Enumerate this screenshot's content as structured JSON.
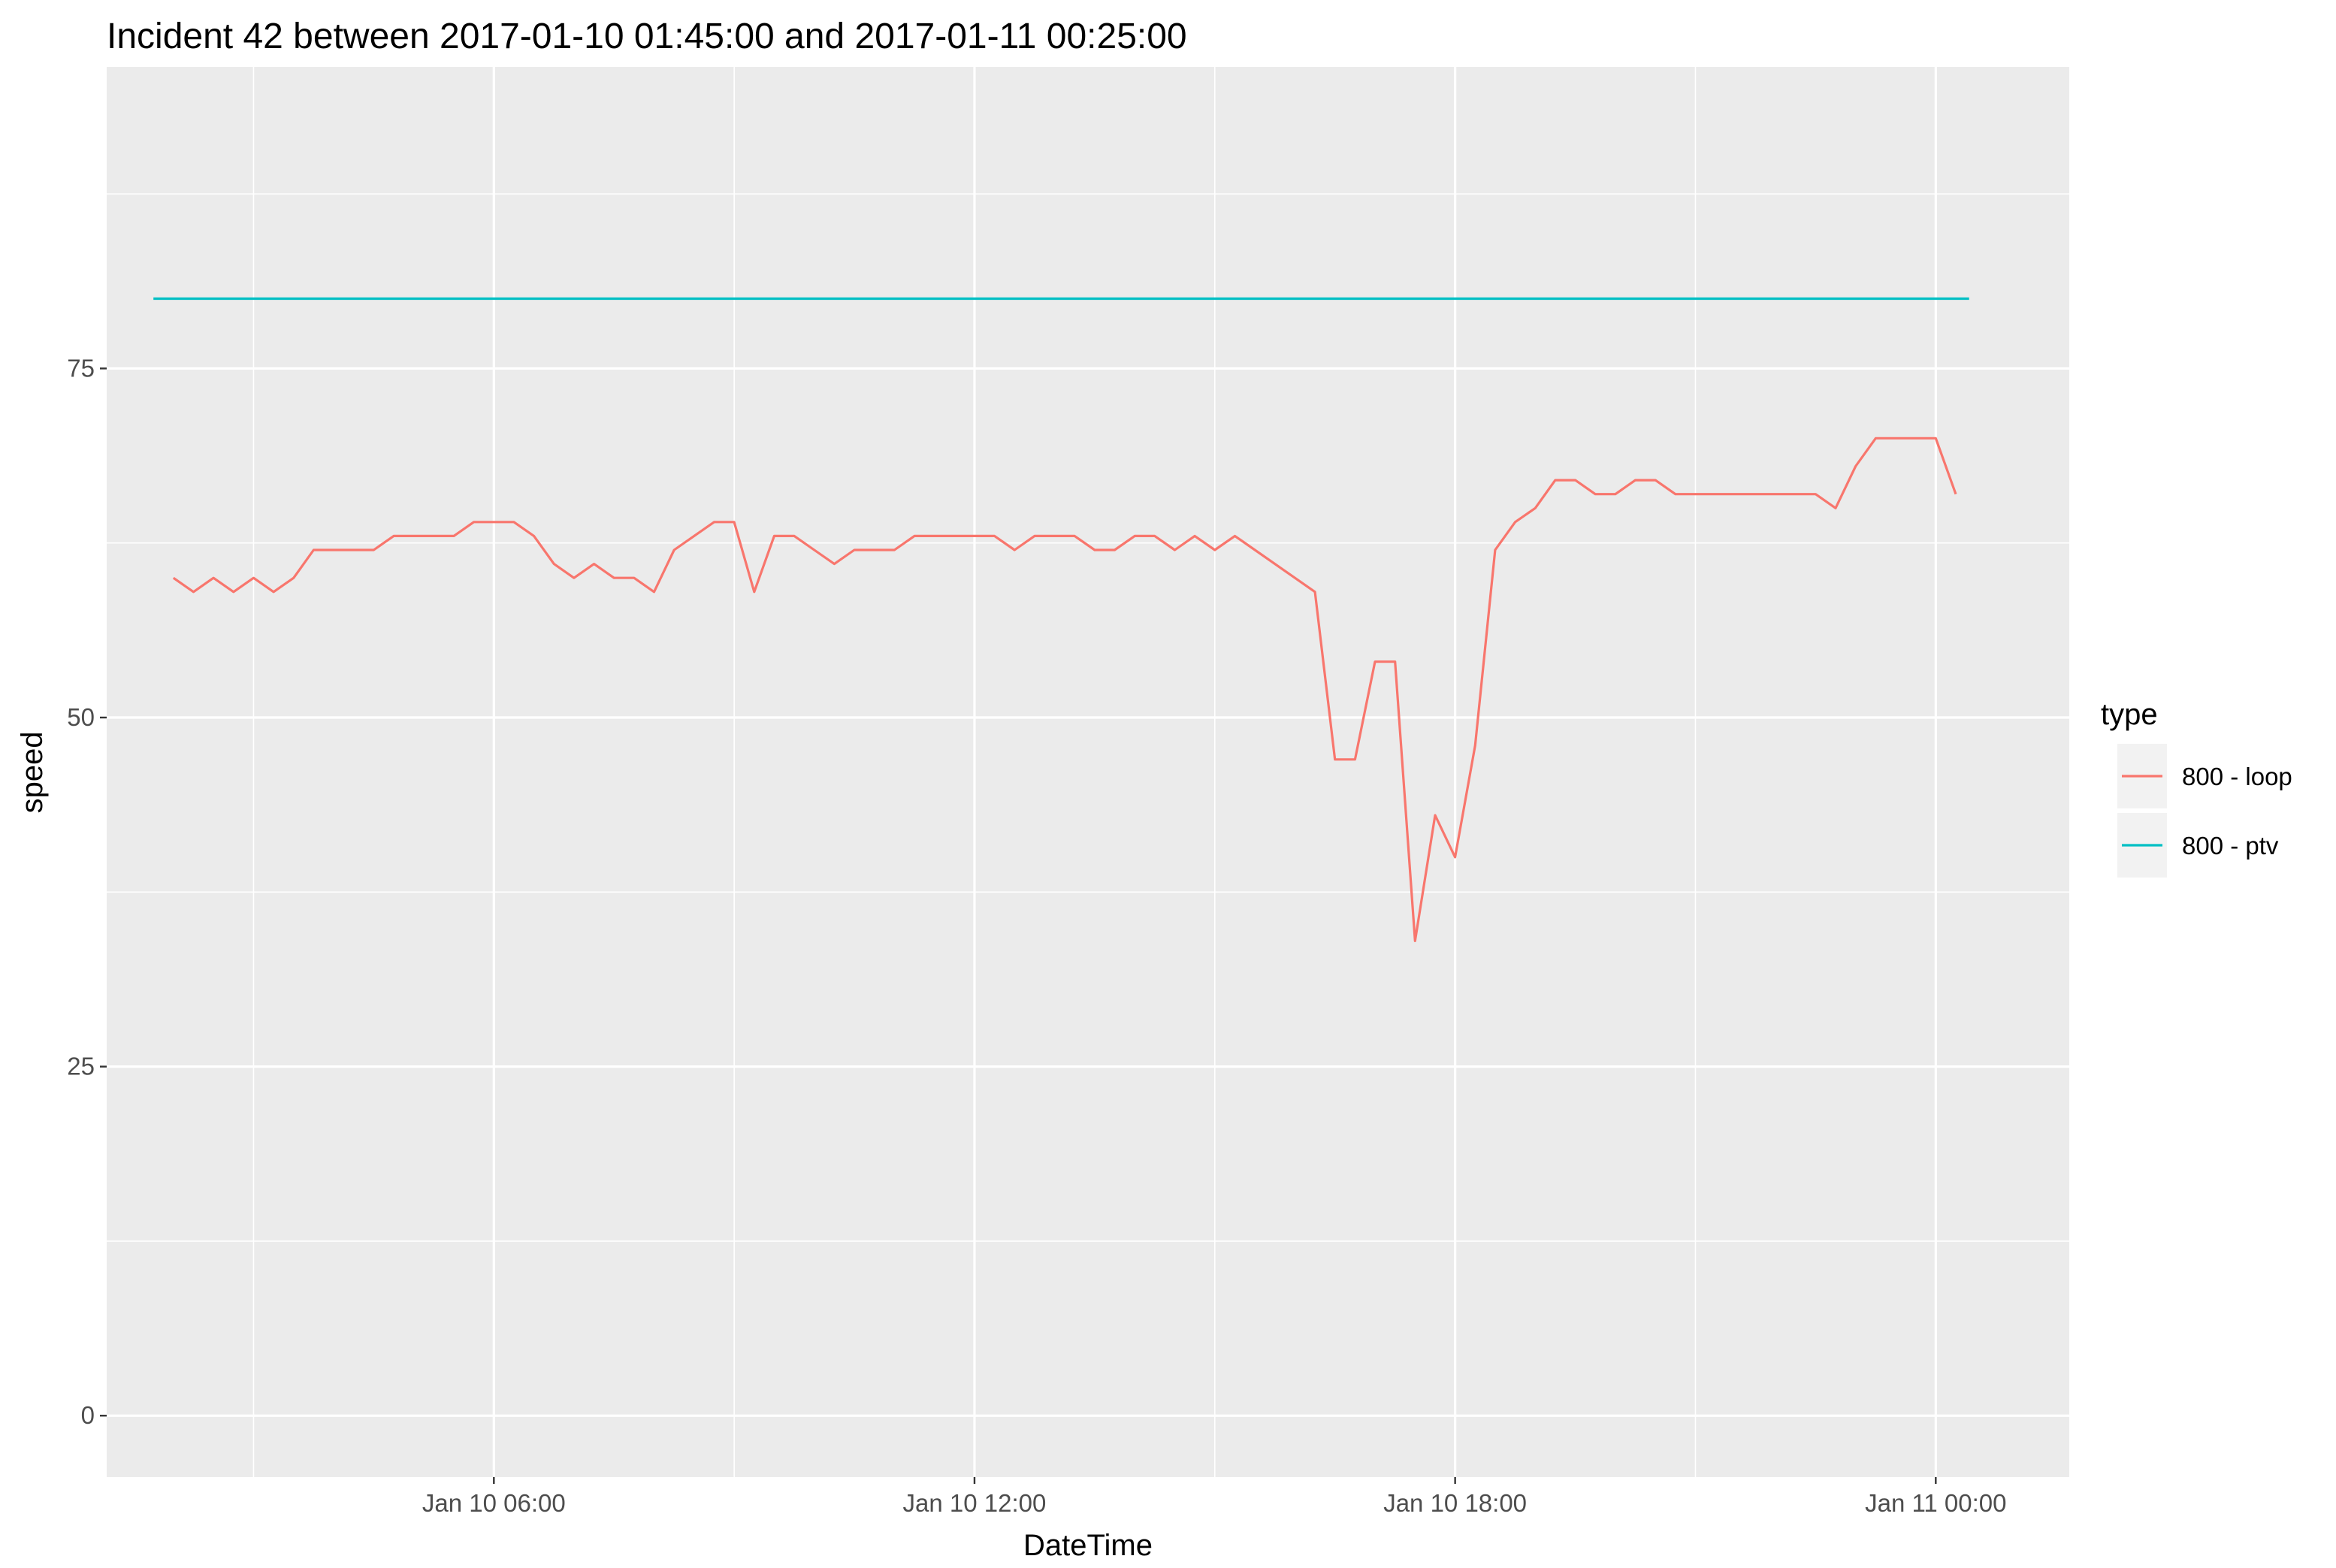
{
  "chart_data": {
    "type": "line",
    "title": "Incident 42 between 2017-01-10 01:45:00 and 2017-01-11 00:25:00",
    "xlabel": "DateTime",
    "ylabel": "speed",
    "x_ticks": [
      {
        "value": "2017-01-10 06:00",
        "label": "Jan 10 06:00"
      },
      {
        "value": "2017-01-10 12:00",
        "label": "Jan 10 12:00"
      },
      {
        "value": "2017-01-10 18:00",
        "label": "Jan 10 18:00"
      },
      {
        "value": "2017-01-11 00:00",
        "label": "Jan 11 00:00"
      }
    ],
    "xlim": [
      "2017-01-10 01:10",
      "2017-01-11 01:40"
    ],
    "y_ticks": [
      0,
      25,
      50,
      75
    ],
    "ylim": [
      -4.4,
      96.6
    ],
    "grid": true,
    "background": "#ebebeb",
    "legend": {
      "title": "type",
      "position": "right"
    },
    "series": [
      {
        "name": "800 - loop",
        "color": "#f8766d",
        "points": [
          [
            "2017-01-10 02:00",
            60
          ],
          [
            "2017-01-10 02:15",
            59
          ],
          [
            "2017-01-10 02:30",
            60
          ],
          [
            "2017-01-10 02:45",
            59
          ],
          [
            "2017-01-10 03:00",
            60
          ],
          [
            "2017-01-10 03:15",
            59
          ],
          [
            "2017-01-10 03:30",
            60
          ],
          [
            "2017-01-10 03:45",
            62
          ],
          [
            "2017-01-10 04:00",
            62
          ],
          [
            "2017-01-10 04:15",
            62
          ],
          [
            "2017-01-10 04:30",
            62
          ],
          [
            "2017-01-10 04:45",
            63
          ],
          [
            "2017-01-10 05:00",
            63
          ],
          [
            "2017-01-10 05:15",
            63
          ],
          [
            "2017-01-10 05:30",
            63
          ],
          [
            "2017-01-10 05:45",
            64
          ],
          [
            "2017-01-10 06:00",
            64
          ],
          [
            "2017-01-10 06:15",
            64
          ],
          [
            "2017-01-10 06:30",
            63
          ],
          [
            "2017-01-10 06:45",
            61
          ],
          [
            "2017-01-10 07:00",
            60
          ],
          [
            "2017-01-10 07:15",
            61
          ],
          [
            "2017-01-10 07:30",
            60
          ],
          [
            "2017-01-10 07:45",
            60
          ],
          [
            "2017-01-10 08:00",
            59
          ],
          [
            "2017-01-10 08:15",
            62
          ],
          [
            "2017-01-10 08:30",
            63
          ],
          [
            "2017-01-10 08:45",
            64
          ],
          [
            "2017-01-10 09:00",
            64
          ],
          [
            "2017-01-10 09:15",
            59
          ],
          [
            "2017-01-10 09:30",
            63
          ],
          [
            "2017-01-10 09:45",
            63
          ],
          [
            "2017-01-10 10:00",
            62
          ],
          [
            "2017-01-10 10:15",
            61
          ],
          [
            "2017-01-10 10:30",
            62
          ],
          [
            "2017-01-10 10:45",
            62
          ],
          [
            "2017-01-10 11:00",
            62
          ],
          [
            "2017-01-10 11:15",
            63
          ],
          [
            "2017-01-10 11:30",
            63
          ],
          [
            "2017-01-10 11:45",
            63
          ],
          [
            "2017-01-10 12:00",
            63
          ],
          [
            "2017-01-10 12:15",
            63
          ],
          [
            "2017-01-10 12:30",
            62
          ],
          [
            "2017-01-10 12:45",
            63
          ],
          [
            "2017-01-10 13:00",
            63
          ],
          [
            "2017-01-10 13:15",
            63
          ],
          [
            "2017-01-10 13:30",
            62
          ],
          [
            "2017-01-10 13:45",
            62
          ],
          [
            "2017-01-10 14:00",
            63
          ],
          [
            "2017-01-10 14:15",
            63
          ],
          [
            "2017-01-10 14:30",
            62
          ],
          [
            "2017-01-10 14:45",
            63
          ],
          [
            "2017-01-10 15:00",
            62
          ],
          [
            "2017-01-10 15:15",
            63
          ],
          [
            "2017-01-10 16:15",
            59
          ],
          [
            "2017-01-10 16:30",
            47
          ],
          [
            "2017-01-10 16:45",
            47
          ],
          [
            "2017-01-10 17:00",
            54
          ],
          [
            "2017-01-10 17:15",
            54
          ],
          [
            "2017-01-10 17:30",
            34
          ],
          [
            "2017-01-10 17:45",
            43
          ],
          [
            "2017-01-10 18:00",
            40
          ],
          [
            "2017-01-10 18:15",
            48
          ],
          [
            "2017-01-10 18:30",
            62
          ],
          [
            "2017-01-10 18:45",
            64
          ],
          [
            "2017-01-10 19:00",
            65
          ],
          [
            "2017-01-10 19:15",
            67
          ],
          [
            "2017-01-10 19:30",
            67
          ],
          [
            "2017-01-10 19:45",
            66
          ],
          [
            "2017-01-10 20:00",
            66
          ],
          [
            "2017-01-10 20:15",
            67
          ],
          [
            "2017-01-10 20:30",
            67
          ],
          [
            "2017-01-10 20:45",
            66
          ],
          [
            "2017-01-10 22:30",
            66
          ],
          [
            "2017-01-10 22:45",
            65
          ],
          [
            "2017-01-10 23:00",
            68
          ],
          [
            "2017-01-10 23:15",
            70
          ],
          [
            "2017-01-10 23:45",
            70
          ],
          [
            "2017-01-11 00:00",
            70
          ],
          [
            "2017-01-11 00:15",
            66
          ]
        ]
      },
      {
        "name": "800 - ptv",
        "color": "#00bfc4",
        "points": [
          [
            "2017-01-10 01:45",
            80
          ],
          [
            "2017-01-11 00:25",
            80
          ]
        ]
      }
    ]
  }
}
